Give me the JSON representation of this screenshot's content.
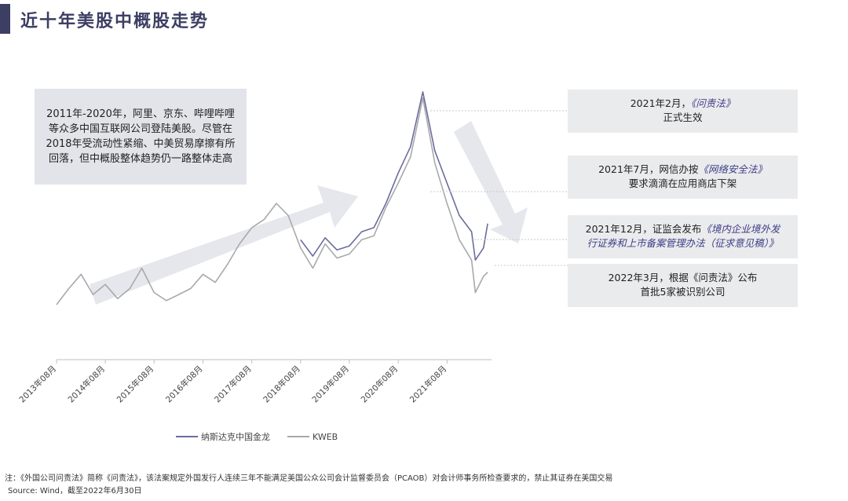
{
  "page": {
    "title": "近十年美股中概股走势",
    "footnote": "注：《外国公司问责法》简称《问责法》，该法案规定外国发行人连续三年不能满足美国公众公司会计监督委员会（PCAOB）对会计师事务所检查要求的，禁止其证券在美国交易",
    "source": "Source: Wind，截至2022年6月30日"
  },
  "left_box": {
    "text": "2011年-2020年，阿里、京东、哔哩哔哩等众多中国互联网公司登陆美股。尽管在2018年受流动性紧缩、中美贸易摩擦有所回落，但中概股整体趋势仍一路整体走高"
  },
  "callouts": [
    {
      "line1_a": "2021年2月，",
      "line1_b": "《问责法》",
      "line2": "正式生效"
    },
    {
      "line1_a": "2021年7月，网信办按",
      "line1_b": "《网络安全法》",
      "line2": "要求滴滴在应用商店下架"
    },
    {
      "line1_a": "2021年12月，证监会发布",
      "line1_b": "《境内企业境外发",
      "line2": "行证券和上市备案管理办法（征求意见稿）》"
    },
    {
      "line1_a": "2022年3月，根据《问责法》公布",
      "line1_b": "",
      "line2": "首批5家被识别公司"
    }
  ],
  "legend": {
    "series1": "纳斯达克中国金龙",
    "series2": "KWEB"
  },
  "colors": {
    "title": "#3d3e63",
    "series1": "#6b6c9e",
    "series2": "#a9a9ab",
    "arrow": "#e6e7ec"
  },
  "chart_data": {
    "type": "line",
    "x_tick_labels": [
      "2013年08月",
      "2014年08月",
      "2015年08月",
      "2016年08月",
      "2017年08月",
      "2018年08月",
      "2019年08月",
      "2020年08月",
      "2021年08月"
    ],
    "x": [
      "2013-08",
      "2013-11",
      "2014-02",
      "2014-05",
      "2014-08",
      "2014-11",
      "2015-02",
      "2015-05",
      "2015-08",
      "2015-11",
      "2016-02",
      "2016-05",
      "2016-08",
      "2016-11",
      "2017-02",
      "2017-05",
      "2017-08",
      "2017-11",
      "2018-02",
      "2018-05",
      "2018-08",
      "2018-11",
      "2019-02",
      "2019-05",
      "2019-08",
      "2019-11",
      "2020-02",
      "2020-05",
      "2020-08",
      "2020-11",
      "2021-02",
      "2021-05",
      "2021-08",
      "2021-11",
      "2022-02",
      "2022-03",
      "2022-05",
      "2022-06"
    ],
    "series": [
      {
        "name": "纳斯达克中国金龙",
        "values": [
          null,
          null,
          null,
          null,
          null,
          null,
          null,
          null,
          null,
          null,
          null,
          null,
          null,
          null,
          null,
          null,
          null,
          null,
          null,
          null,
          52,
          44,
          53,
          47,
          49,
          56,
          58,
          70,
          85,
          98,
          125,
          96,
          80,
          64,
          56,
          42,
          48,
          60
        ]
      },
      {
        "name": "KWEB",
        "values": [
          20,
          28,
          35,
          25,
          30,
          23,
          28,
          38,
          26,
          22,
          25,
          28,
          35,
          31,
          40,
          50,
          58,
          62,
          70,
          64,
          48,
          38,
          50,
          43,
          45,
          52,
          54,
          68,
          80,
          93,
          122,
          90,
          70,
          52,
          42,
          26,
          34,
          36
        ]
      }
    ],
    "grid": false,
    "y_axis_visible": false,
    "legend_position": "bottom"
  }
}
